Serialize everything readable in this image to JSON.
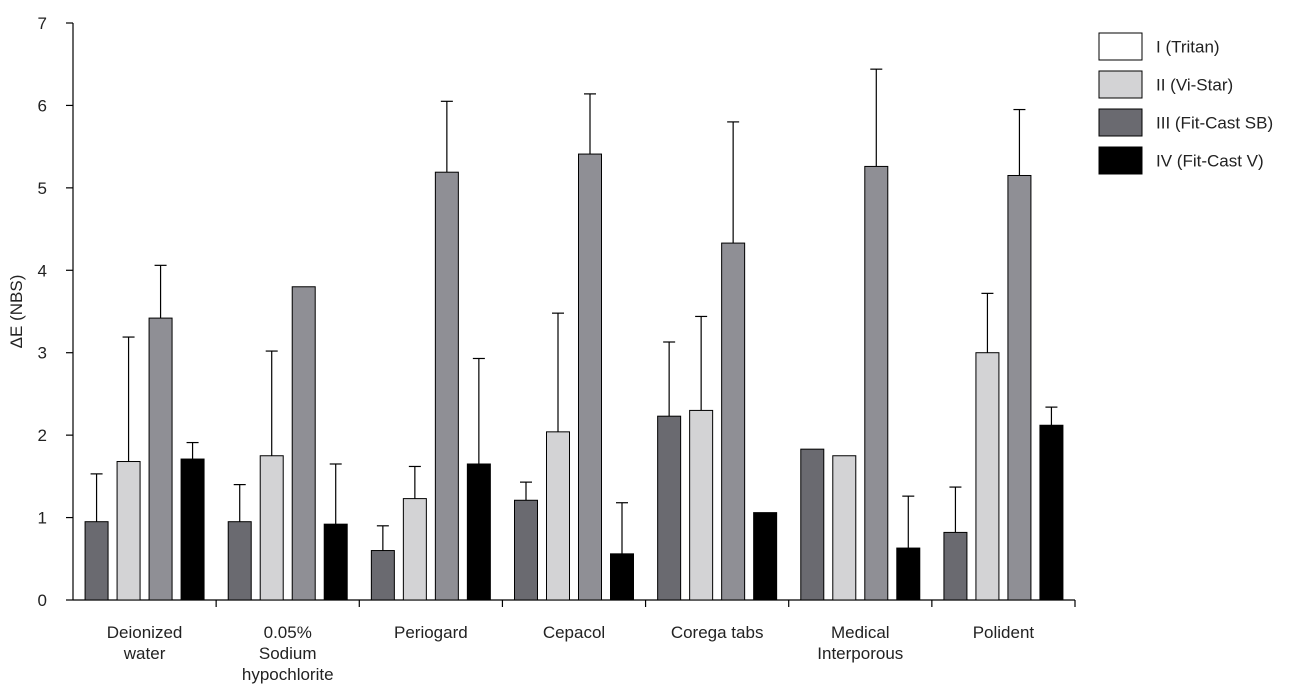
{
  "chart_data": {
    "type": "bar",
    "ylabel": "ΔE (NBS)",
    "ylim": [
      0,
      7
    ],
    "yticks": [
      "0",
      "1",
      "2",
      "3",
      "4",
      "5",
      "6",
      "7"
    ],
    "grid": false,
    "legend_position": "top-right",
    "categories": [
      [
        "Deionized",
        "water"
      ],
      [
        "0.05%",
        "Sodium",
        "hypochlorite"
      ],
      [
        "Periogard"
      ],
      [
        "Cepacol"
      ],
      [
        "Corega tabs"
      ],
      [
        "Medical",
        "Interporous"
      ],
      [
        "Polident"
      ]
    ],
    "series": [
      {
        "name": "I (Tritan)",
        "color": "#6a6a70",
        "values": [
          0.95,
          0.95,
          0.6,
          1.21,
          2.23,
          1.83,
          0.82
        ],
        "errors": [
          0.58,
          0.45,
          0.3,
          0.22,
          0.9,
          null,
          0.55
        ]
      },
      {
        "name": "II (Vi-Star)",
        "color": "#d3d3d5",
        "values": [
          1.68,
          1.75,
          1.23,
          2.04,
          2.3,
          1.75,
          3.0
        ],
        "errors": [
          1.51,
          1.27,
          0.39,
          1.44,
          1.14,
          null,
          0.72
        ]
      },
      {
        "name": "III (Fit-Cast SB)",
        "color": "#8f8f95",
        "values": [
          3.42,
          3.8,
          5.19,
          5.41,
          4.33,
          5.26,
          5.15
        ],
        "errors": [
          0.64,
          null,
          0.86,
          0.73,
          1.47,
          1.18,
          0.8
        ]
      },
      {
        "name": "IV (Fit-Cast V)",
        "color": "#000000",
        "values": [
          1.71,
          0.92,
          1.65,
          0.56,
          1.06,
          0.63,
          2.12
        ],
        "errors": [
          0.2,
          0.73,
          1.28,
          0.62,
          null,
          0.63,
          0.22
        ]
      }
    ],
    "legend_items": [
      {
        "label": "I (Tritan)",
        "color": "#ffffff"
      },
      {
        "label": "II (Vi-Star)",
        "color": "#d3d3d5"
      },
      {
        "label": "III (Fit-Cast SB)",
        "color": "#6a6a70"
      },
      {
        "label": "IV (Fit-Cast V)",
        "color": "#000000"
      }
    ]
  }
}
